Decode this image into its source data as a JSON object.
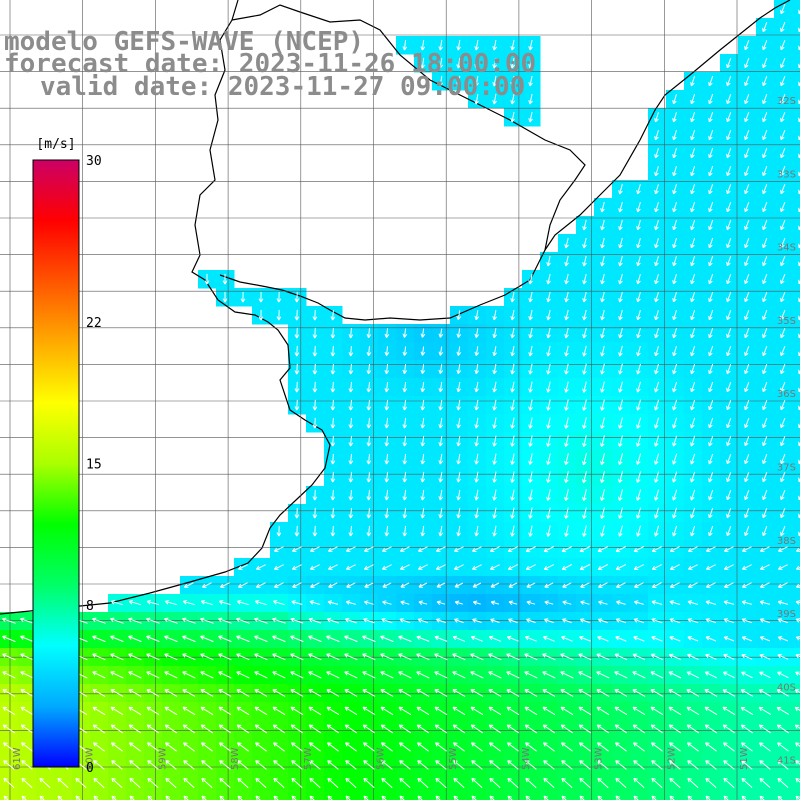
{
  "map": {
    "title_line1": "modelo GEFS-WAVE (NCEP)",
    "title_line2": "forecast date: 2023-11-26 18:00:00",
    "title_line3": "valid date: 2023-11-27 09:00:00",
    "lat_labels": [
      "32S",
      "33S",
      "34S",
      "35S",
      "36S",
      "37S",
      "38S",
      "39S",
      "40S",
      "41S"
    ],
    "lon_labels": [
      "61W",
      "60W",
      "59W",
      "58W",
      "57W",
      "56W",
      "55W",
      "54W",
      "53W",
      "52W",
      "51W"
    ]
  },
  "colorbar": {
    "unit": "[m/s]",
    "tick_labels": [
      "30",
      "22",
      "15",
      "8",
      "0"
    ],
    "tick_values": [
      30,
      22,
      15,
      8,
      0
    ],
    "min": 0,
    "max": 30,
    "colors": [
      "#0000ff",
      "#00aaff",
      "#00ffff",
      "#00ff66",
      "#00ff00",
      "#aaff00",
      "#ffff00",
      "#ffaa00",
      "#ff5500",
      "#ff0000",
      "#cc0066"
    ]
  }
}
